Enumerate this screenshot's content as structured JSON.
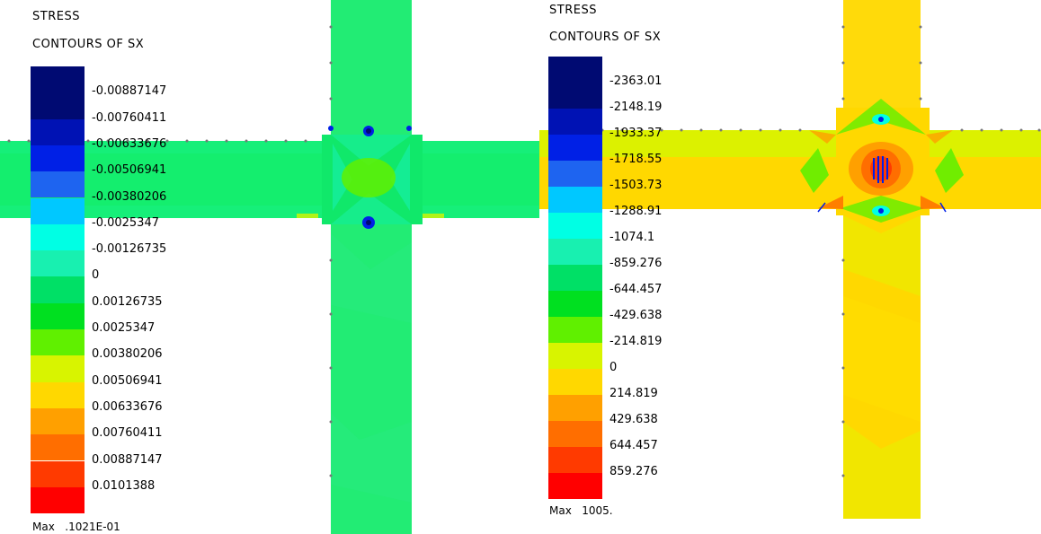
{
  "left": {
    "title_line1": "STRESS",
    "title_line2": "CONTOURS OF SX",
    "legend_labels": [
      "-0.00887147",
      "-0.00760411",
      "-0.00633676",
      "-0.00506941",
      "-0.00380206",
      "-0.0025347",
      "-0.00126735",
      "0",
      "0.00126735",
      "0.0025347",
      "0.00380206",
      "0.00506941",
      "0.00633676",
      "0.00760411",
      "0.00887147",
      "0.0101388"
    ],
    "legend_colors": [
      "#000a72",
      "#0012b4",
      "#0020e6",
      "#1e64f0",
      "#00c8ff",
      "#00ffe4",
      "#18f0b0",
      "#00e066",
      "#00e020",
      "#60f000",
      "#d8f400",
      "#ffd800",
      "#ffa000",
      "#ff6e00",
      "#ff3a00",
      "#ff0000"
    ],
    "max_label": "Max",
    "max_value": ".1021E-01",
    "base_color": "#1aef72"
  },
  "right": {
    "title_line1": "STRESS",
    "title_line2": "CONTOURS OF SX",
    "legend_labels": [
      "-2363.01",
      "-2148.19",
      "-1933.37",
      "-1718.55",
      "-1503.73",
      "-1288.91",
      "-1074.1",
      "-859.276",
      "-644.457",
      "-429.638",
      "-214.819",
      "0",
      "214.819",
      "429.638",
      "644.457",
      "859.276"
    ],
    "legend_colors": [
      "#000a72",
      "#0012b4",
      "#0020e6",
      "#1e64f0",
      "#00c8ff",
      "#00ffe4",
      "#18f0b0",
      "#00e066",
      "#00e020",
      "#60f000",
      "#d8f400",
      "#ffd800",
      "#ffa000",
      "#ff6e00",
      "#ff3a00",
      "#ff0000"
    ],
    "max_label": "Max",
    "max_value": "1005.",
    "base_color": "#ffd800"
  }
}
